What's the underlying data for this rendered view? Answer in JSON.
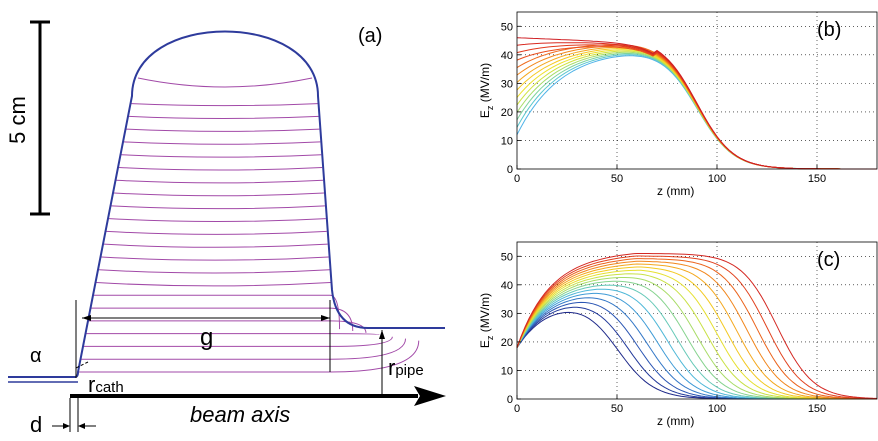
{
  "diagram": {
    "panel_label": "(a)",
    "scale_label": "5 cm",
    "gap_label": "g",
    "alpha_label": "α",
    "r_cath_main": "r",
    "r_cath_sub": "cath",
    "r_pipe_main": "r",
    "r_pipe_sub": "pipe",
    "beam_axis_label": "beam axis",
    "d_label": "d"
  },
  "chart_data": [
    {
      "type": "line",
      "panel_label": "(b)",
      "xlabel": "z (mm)",
      "ylabel_main": "E",
      "ylabel_sub": "z",
      "ylabel_unit": " (MV/m)",
      "xlim": [
        0,
        180
      ],
      "ylim": [
        0,
        55
      ],
      "xticks": [
        0,
        50,
        100,
        150
      ],
      "yticks": [
        0,
        10,
        20,
        30,
        40,
        50
      ],
      "grid": true,
      "curve_family": {
        "count": 14,
        "z_min": 0,
        "z_max": 180,
        "start_values_min": 12,
        "start_values_max": 46,
        "plateau_values": [
          43,
          46
        ],
        "common_falloff_center": 90,
        "tail_zero_by": 125
      },
      "colors": [
        "#4fb3e8",
        "#5bc7cf",
        "#7fd39c",
        "#a7dd6a",
        "#cfe23e",
        "#eee02a",
        "#f6c821",
        "#f5a81e",
        "#f2881c",
        "#ef6a1b",
        "#ea4d1c",
        "#e23a1e",
        "#d92a20",
        "#cf1f24"
      ]
    },
    {
      "type": "line",
      "panel_label": "(c)",
      "xlabel": "z (mm)",
      "ylabel_main": "E",
      "ylabel_sub": "z",
      "ylabel_unit": " (MV/m)",
      "xlim": [
        0,
        180
      ],
      "ylim": [
        0,
        55
      ],
      "xticks": [
        0,
        50,
        100,
        150
      ],
      "yticks": [
        0,
        10,
        20,
        30,
        40,
        50
      ],
      "grid": true,
      "curve_family": {
        "count": 17,
        "start_value": 18,
        "peak_values": [
          36,
          50
        ],
        "falloff_centers": [
          50,
          130
        ]
      },
      "colors": [
        "#1f2a8a",
        "#233a9b",
        "#2a55b3",
        "#3478c7",
        "#3f9bd6",
        "#4fb8d8",
        "#66c9b8",
        "#86d38e",
        "#a8dc67",
        "#c9e145",
        "#e6e030",
        "#f3c922",
        "#f4a81e",
        "#f1861c",
        "#eb631c",
        "#e1421f",
        "#d42822"
      ]
    }
  ]
}
